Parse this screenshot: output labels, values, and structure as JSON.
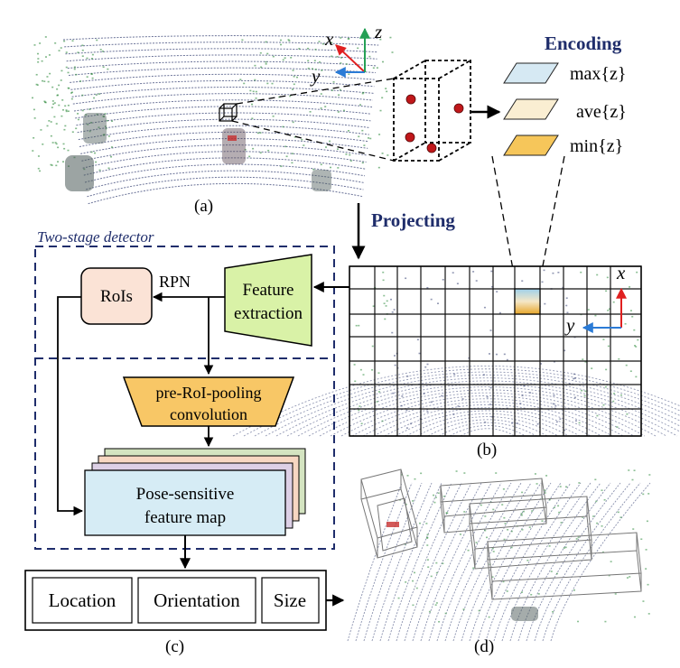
{
  "panels": {
    "a": "(a)",
    "b": "(b)",
    "c": "(c)",
    "d": "(d)"
  },
  "encoding": {
    "title": "Encoding",
    "max": "max{z}",
    "ave": "ave{z}",
    "min": "min{z}"
  },
  "projecting": "Projecting",
  "axes_a": {
    "x": "x",
    "y": "y",
    "z": "z"
  },
  "axes_b": {
    "x": "x",
    "y": "y"
  },
  "detector": {
    "title": "Two-stage detector",
    "rois": "RoIs",
    "rpn": "RPN",
    "feature_line1": "Feature",
    "feature_line2": "extraction",
    "pre_line1": "pre-RoI-pooling",
    "pre_line2": "convolution",
    "pose_line1": "Pose-sensitive",
    "pose_line2": "feature map"
  },
  "outputs": {
    "location": "Location",
    "orientation": "Orientation",
    "size": "Size"
  },
  "colors": {
    "navy": "#1f2d6b",
    "layer_max": "#d6e9f3",
    "layer_ave": "#faeed2",
    "layer_min": "#f6c65a",
    "rois_fill": "#fbe3d6",
    "feature_fill": "#d9f2a7",
    "pre_fill": "#f8c766",
    "pose_fill": "#d6ecf5",
    "stack_1": "#d4e4c1",
    "stack_2": "#f7d7c2",
    "stack_3": "#ddd0e6",
    "voxel_point": "#c0171a",
    "axis_x": "#e02020",
    "axis_y": "#2b7bd6",
    "axis_z": "#25a055",
    "lidar": "#3b4677",
    "veg": "#2e8b3c"
  }
}
